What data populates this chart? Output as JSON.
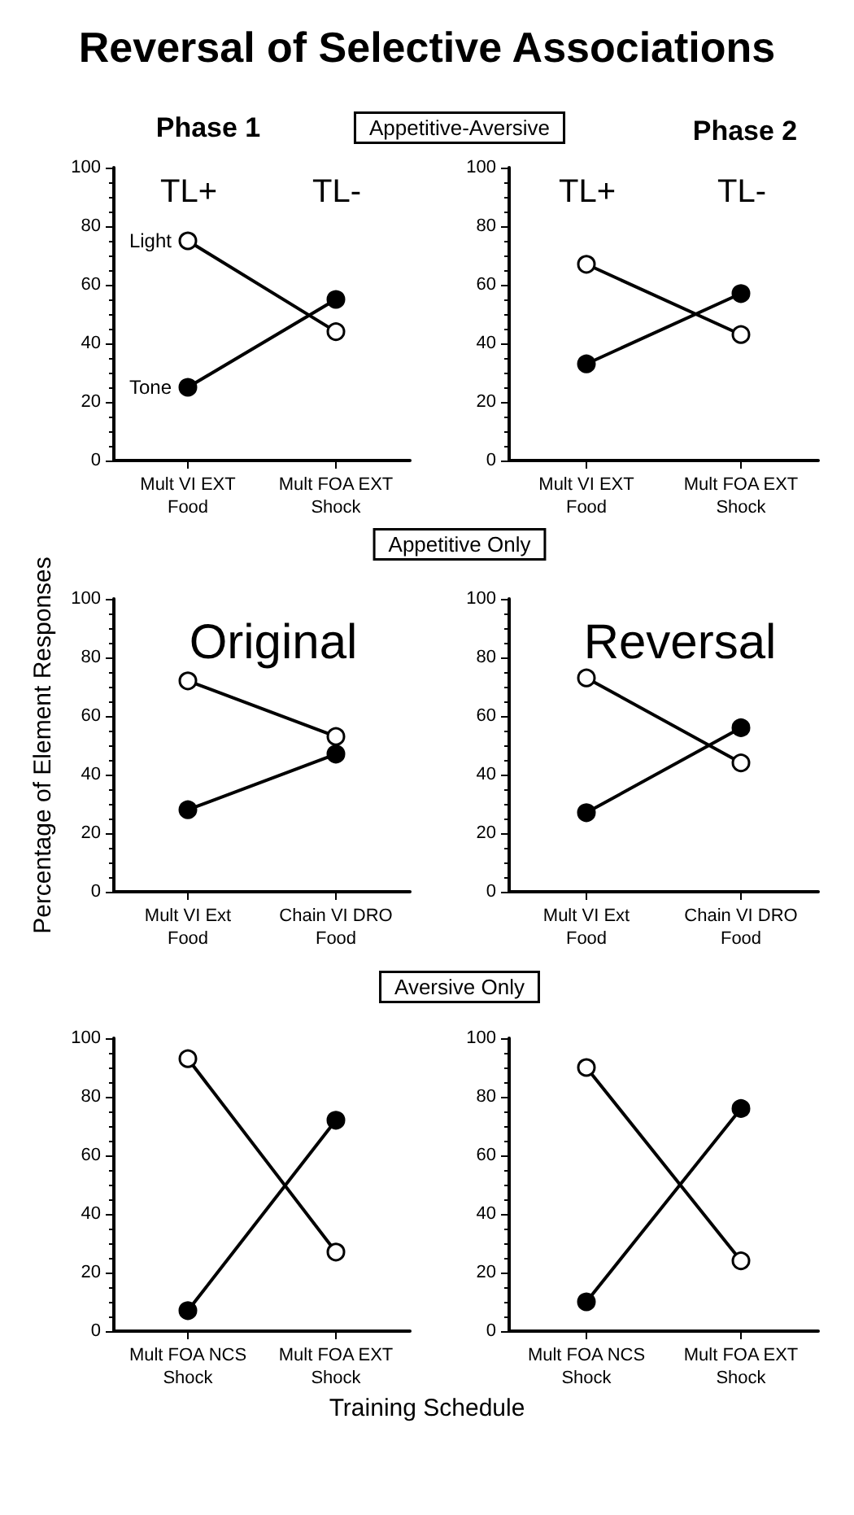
{
  "chart_data": [
    {
      "type": "line",
      "annotations": [
        "Reversal of Selective Associations",
        "Phase 1",
        "Appetitive-Aversive",
        "TL+",
        "TL-"
      ],
      "categories": [
        "Mult VI EXT\nFood",
        "Mult FOA EXT\nShock"
      ],
      "series": [
        {
          "name": "Light",
          "color": "#ffffff",
          "values": [
            75,
            44
          ]
        },
        {
          "name": "Tone",
          "color": "#000000",
          "values": [
            25,
            55
          ]
        }
      ],
      "ylim": [
        0,
        100
      ],
      "yticks": [
        0,
        20,
        40,
        60,
        80,
        100
      ],
      "grid": false,
      "legend": false,
      "marker": "circle",
      "line_style": "solid"
    },
    {
      "type": "line",
      "annotations": [
        "Phase 2",
        "TL+",
        "TL-"
      ],
      "categories": [
        "Mult VI EXT\nFood",
        "Mult FOA EXT\nShock"
      ],
      "series": [
        {
          "color": "#ffffff",
          "values": [
            67,
            43
          ]
        },
        {
          "color": "#000000",
          "values": [
            33,
            57
          ]
        }
      ],
      "ylim": [
        0,
        100
      ],
      "yticks": [
        0,
        20,
        40,
        60,
        80,
        100
      ],
      "grid": false,
      "legend": false,
      "marker": "circle",
      "line_style": "solid"
    },
    {
      "type": "line",
      "ylabel": "Percentage of Element Responses",
      "annotations": [
        "Appetitive Only",
        "Original"
      ],
      "categories": [
        "Mult VI Ext\nFood",
        "Chain VI DRO\nFood"
      ],
      "series": [
        {
          "color": "#ffffff",
          "values": [
            72,
            53
          ]
        },
        {
          "color": "#000000",
          "values": [
            28,
            47
          ]
        }
      ],
      "ylim": [
        0,
        100
      ],
      "yticks": [
        0,
        20,
        40,
        60,
        80,
        100
      ],
      "grid": false,
      "legend": false,
      "marker": "circle",
      "line_style": "solid"
    },
    {
      "type": "line",
      "annotations": [
        "Reversal"
      ],
      "categories": [
        "Mult VI Ext\nFood",
        "Chain VI DRO\nFood"
      ],
      "series": [
        {
          "color": "#ffffff",
          "values": [
            73,
            44
          ]
        },
        {
          "color": "#000000",
          "values": [
            27,
            56
          ]
        }
      ],
      "ylim": [
        0,
        100
      ],
      "yticks": [
        0,
        20,
        40,
        60,
        80,
        100
      ],
      "grid": false,
      "legend": false,
      "marker": "circle",
      "line_style": "solid"
    },
    {
      "type": "line",
      "xlabel": "Training Schedule",
      "annotations": [
        "Aversive Only"
      ],
      "categories": [
        "Mult FOA NCS\nShock",
        "Mult FOA EXT\nShock"
      ],
      "series": [
        {
          "color": "#ffffff",
          "values": [
            93,
            27
          ]
        },
        {
          "color": "#000000",
          "values": [
            7,
            72
          ]
        }
      ],
      "ylim": [
        0,
        100
      ],
      "yticks": [
        0,
        20,
        40,
        60,
        80,
        100
      ],
      "grid": false,
      "legend": false,
      "marker": "circle",
      "line_style": "solid"
    },
    {
      "type": "line",
      "categories": [
        "Mult FOA NCS\nShock",
        "Mult FOA EXT\nShock"
      ],
      "series": [
        {
          "color": "#ffffff",
          "values": [
            90,
            24
          ]
        },
        {
          "color": "#000000",
          "values": [
            10,
            76
          ]
        }
      ],
      "ylim": [
        0,
        100
      ],
      "yticks": [
        0,
        20,
        40,
        60,
        80,
        100
      ],
      "grid": false,
      "legend": false,
      "marker": "circle",
      "line_style": "solid"
    }
  ]
}
